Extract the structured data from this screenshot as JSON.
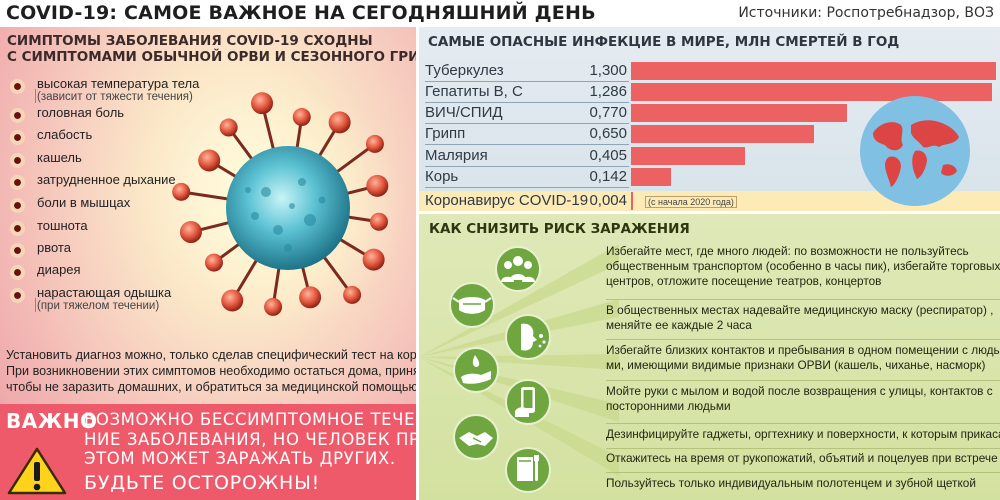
{
  "header": {
    "title": "COVID-19: САМОЕ ВАЖНОЕ НА СЕГОДНЯШНИЙ ДЕНЬ",
    "sources": "Источники: Роспотребнадзор, ВОЗ"
  },
  "symptoms": {
    "heading_line1": "СИМПТОМЫ ЗАБОЛЕВАНИЯ COVID-19 СХОДНЫ",
    "heading_line2": "С СИМПТОМАМИ ОБЫЧНОЙ ОРВИ И СЕЗОННОГО ГРИППА",
    "items": [
      {
        "label": "высокая температура тела",
        "note": "(зависит от тяжести течения)"
      },
      {
        "label": "головная боль",
        "note": ""
      },
      {
        "label": "слабость",
        "note": ""
      },
      {
        "label": "кашель",
        "note": ""
      },
      {
        "label": "затрудненное дыхание",
        "note": ""
      },
      {
        "label": "боли в мышцах",
        "note": ""
      },
      {
        "label": "тошнота",
        "note": ""
      },
      {
        "label": "рвота",
        "note": ""
      },
      {
        "label": "диарея",
        "note": ""
      },
      {
        "label": "нарастающая одышка",
        "note": "(при тяжелом течении)"
      }
    ]
  },
  "diagnosis": {
    "line1": "Установить диагноз можно, только сделав специфический тест на коронавирус.",
    "line2": "При возникновении этих симптомов необходимо остаться дома, принять меры,",
    "line3": "чтобы не заразить домашних, и обратиться за медицинской помощью"
  },
  "important": {
    "word": "ВАЖНО",
    "line1": "ВОЗМОЖНО БЕССИМПТОМНОЕ ТЕЧЕ-",
    "line2": "НИЕ ЗАБОЛЕВАНИЯ, НО ЧЕЛОВЕК ПРИ",
    "line3": "ЭТОМ МОЖЕТ ЗАРАЖАТЬ ДРУГИХ.",
    "careful": "БУДЬТЕ ОСТОРОЖНЫ!"
  },
  "infections": {
    "heading": "САМЫЕ ОПАСНЫЕ ИНФЕКЦИЕ В МИРЕ, МЛН СМЕРТЕЙ В ГОД",
    "rows": [
      {
        "name": "Туберкулез",
        "value": "1,300",
        "amount": 1.3
      },
      {
        "name": "Гепатиты В, С",
        "value": "1,286",
        "amount": 1.286
      },
      {
        "name": "ВИЧ/СПИД",
        "value": "0,770",
        "amount": 0.77
      },
      {
        "name": "Грипп",
        "value": "0,650",
        "amount": 0.65
      },
      {
        "name": "Малярия",
        "value": "0,405",
        "amount": 0.405
      },
      {
        "name": "Корь",
        "value": "0,142",
        "amount": 0.142
      }
    ],
    "covid": {
      "name": "Коронавирус COVID-19",
      "value": "0,004",
      "amount": 0.004,
      "note": "(с начала 2020 года)"
    }
  },
  "prevention": {
    "heading": "КАК СНИЗИТЬ РИСК ЗАРАЖЕНИЯ",
    "items": [
      {
        "lines": [
          "Избегайте мест, где много людей: по возможности не пользуйтесь",
          "общественным транспортом (особенно в часы пик), избегайте торговых",
          "центров, отложите посещение театров, концертов"
        ]
      },
      {
        "lines": [
          "В общественных местах надевайте медицинскую маску (респиратор) ,",
          "меняйте ее каждые 2 часа"
        ]
      },
      {
        "lines": [
          "Избегайте близких контактов и пребывания в одном помещении с людь-",
          "ми, имеющими видимые признаки ОРВИ (кашель, чиханье, насморк)"
        ]
      },
      {
        "lines": [
          "Мойте руки с мылом и водой  после возвращения с улицы, контактов с",
          "посторонними людьми"
        ]
      },
      {
        "lines": [
          "Дезинфицируйте  гаджеты, оргтехнику и поверхности, к которым прикасаетесь"
        ]
      },
      {
        "lines": [
          "Откажитесь на время от рукопожатий, объятий и поцелуев при встрече"
        ]
      },
      {
        "lines": [
          "Пользуйтесь только индивидуальным полотенцем и зубной щеткой"
        ]
      }
    ],
    "icons": [
      "crowd-icon",
      "mask-icon",
      "cough-icon",
      "handwash-icon",
      "phone-disinfect-icon",
      "handshake-icon",
      "towel-icon"
    ]
  },
  "colors": {
    "bar": "#ec6161",
    "important_bg": "#ee5a6a",
    "prevention_circle": "#6fa640",
    "covid_highlight": "#fdebb7"
  }
}
